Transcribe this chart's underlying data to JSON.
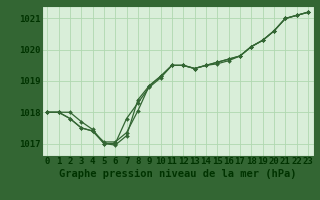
{
  "title": "Graphe pression niveau de la mer (hPa)",
  "x_hours": [
    0,
    1,
    2,
    3,
    4,
    5,
    6,
    7,
    8,
    9,
    10,
    11,
    12,
    13,
    14,
    15,
    16,
    17,
    18,
    19,
    20,
    21,
    22,
    23
  ],
  "series1": [
    1018.0,
    1018.0,
    1018.0,
    1017.7,
    1017.45,
    1017.0,
    1016.95,
    1017.25,
    1018.4,
    1018.85,
    1019.15,
    1019.5,
    1019.5,
    1019.4,
    1019.5,
    1019.55,
    1019.65,
    1019.8,
    1020.1,
    1020.3,
    1020.6,
    1021.0,
    1021.1,
    1021.2
  ],
  "series2": [
    1018.0,
    1018.0,
    1017.8,
    1017.5,
    1017.4,
    1017.0,
    1017.0,
    1017.8,
    1018.3,
    1018.8,
    1019.1,
    1019.5,
    1019.5,
    1019.4,
    1019.5,
    1019.6,
    1019.7,
    1019.8,
    1020.1,
    1020.3,
    1020.6,
    1021.0,
    1021.1,
    1021.2
  ],
  "series3": [
    1018.0,
    1018.0,
    1017.8,
    1017.5,
    1017.4,
    1017.05,
    1017.05,
    1017.35,
    1018.05,
    1018.85,
    1019.15,
    1019.5,
    1019.5,
    1019.4,
    1019.5,
    1019.6,
    1019.7,
    1019.8,
    1020.1,
    1020.3,
    1020.6,
    1021.0,
    1021.1,
    1021.2
  ],
  "line_color": "#336633",
  "bg_color": "#cce8cc",
  "plot_bg_color": "#d9eed9",
  "grid_color": "#b0d8b0",
  "outer_bg": "#336633",
  "ylim_min": 1016.6,
  "ylim_max": 1021.4,
  "yticks": [
    1017,
    1018,
    1019,
    1020,
    1021
  ],
  "tick_color": "#003300",
  "title_color": "#003300",
  "title_fontsize": 7.5,
  "tick_fontsize": 6.5,
  "marker_size": 2.0,
  "linewidth": 0.9
}
